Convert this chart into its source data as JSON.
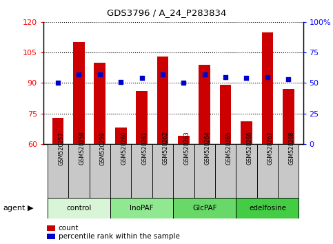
{
  "title": "GDS3796 / A_24_P283834",
  "samples": [
    "GSM520257",
    "GSM520258",
    "GSM520259",
    "GSM520260",
    "GSM520261",
    "GSM520262",
    "GSM520263",
    "GSM520264",
    "GSM520265",
    "GSM520266",
    "GSM520267",
    "GSM520268"
  ],
  "counts": [
    73,
    110,
    100,
    68,
    86,
    103,
    64,
    99,
    89,
    71,
    115,
    87
  ],
  "percentiles": [
    50,
    57,
    57,
    51,
    54,
    57,
    50,
    57,
    55,
    54,
    55,
    53
  ],
  "groups": [
    {
      "label": "control",
      "indices": [
        0,
        1,
        2
      ],
      "color": "#d8f5d8"
    },
    {
      "label": "InoPAF",
      "indices": [
        3,
        4,
        5
      ],
      "color": "#90e890"
    },
    {
      "label": "GlcPAF",
      "indices": [
        6,
        7,
        8
      ],
      "color": "#68d868"
    },
    {
      "label": "edelfosine",
      "indices": [
        9,
        10,
        11
      ],
      "color": "#44cc44"
    }
  ],
  "ylim_left": [
    60,
    120
  ],
  "ylim_right": [
    0,
    100
  ],
  "yticks_left": [
    60,
    75,
    90,
    105,
    120
  ],
  "yticks_right": [
    0,
    25,
    50,
    75,
    100
  ],
  "bar_color": "#cc0000",
  "dot_color": "#0000cc",
  "bar_width": 0.55,
  "cell_color": "#c8c8c8",
  "legend_count_label": "count",
  "legend_pct_label": "percentile rank within the sample",
  "agent_label": "agent"
}
